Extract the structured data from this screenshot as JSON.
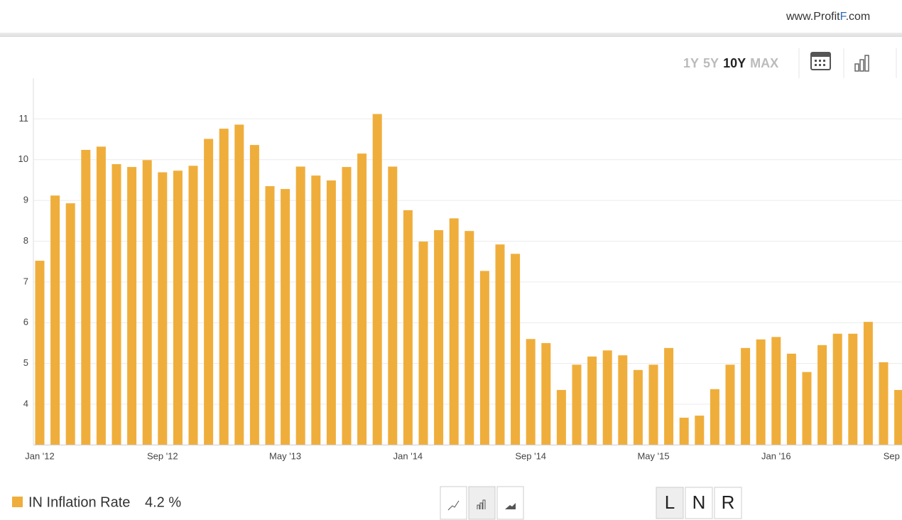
{
  "ui": {
    "brand": {
      "prefix": "www.Profit",
      "mark": "F",
      "suffix": ".com"
    },
    "ranges": [
      "1Y",
      "5Y",
      "10Y",
      "MAX"
    ],
    "active_range": 2,
    "modes": [
      "L",
      "N",
      "R"
    ],
    "active_mode": 0
  },
  "chart_data": {
    "type": "bar",
    "categories": [
      "Jan '12",
      null,
      null,
      null,
      null,
      null,
      null,
      null,
      "Sep '12",
      null,
      null,
      null,
      null,
      null,
      null,
      null,
      "May '13",
      null,
      null,
      null,
      null,
      null,
      null,
      null,
      "Jan '14",
      null,
      null,
      null,
      null,
      null,
      null,
      null,
      "Sep '14",
      null,
      null,
      null,
      null,
      null,
      null,
      null,
      "May '15",
      null,
      null,
      null,
      null,
      null,
      null,
      null,
      "Jan '16",
      null,
      null,
      null,
      null,
      null,
      null,
      null,
      "Sep '16"
    ],
    "series": [
      {
        "name": "IN Inflation Rate",
        "color": "#efae3b",
        "values": [
          7.52,
          9.12,
          8.93,
          10.24,
          10.32,
          9.89,
          9.82,
          9.99,
          9.69,
          9.73,
          9.85,
          10.51,
          10.76,
          10.86,
          10.36,
          9.35,
          9.28,
          9.83,
          9.61,
          9.49,
          9.82,
          10.15,
          11.12,
          9.83,
          8.76,
          7.99,
          8.27,
          8.56,
          8.25,
          7.27,
          7.92,
          7.69,
          5.6,
          5.5,
          4.35,
          4.97,
          5.17,
          5.32,
          5.2,
          4.84,
          4.97,
          5.38,
          3.67,
          3.72,
          4.37,
          4.97,
          5.38,
          5.59,
          5.65,
          5.24,
          4.79,
          5.45,
          5.73,
          5.73,
          6.02,
          5.03,
          4.35
        ]
      }
    ],
    "current": {
      "value": 4.2,
      "label": "4.2 %"
    },
    "ylim": [
      3,
      12
    ],
    "yticks": [
      4,
      5,
      6,
      7,
      8,
      9,
      10,
      11
    ],
    "grid": true
  }
}
